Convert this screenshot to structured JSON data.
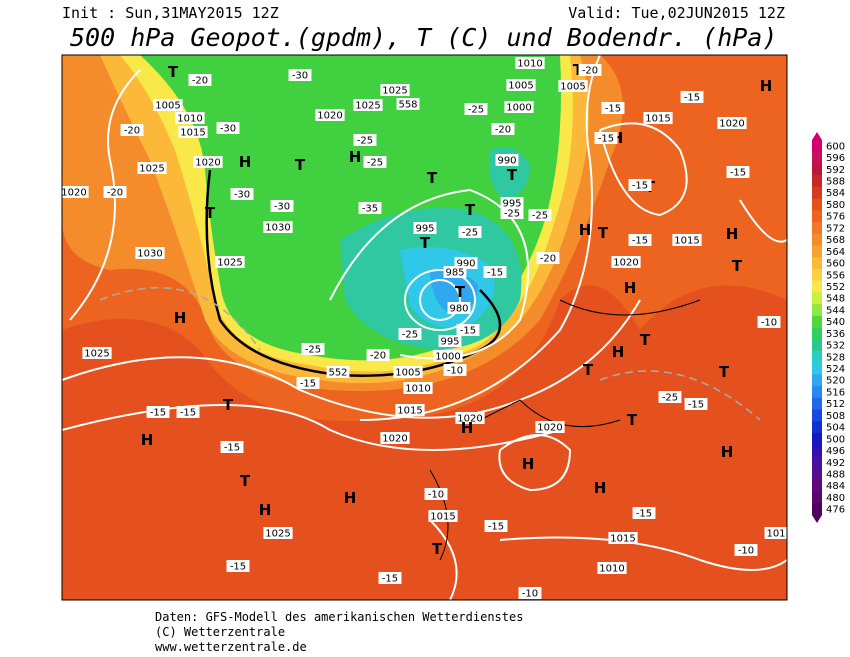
{
  "header": {
    "init": "Init : Sun,31MAY2015 12Z",
    "valid": "Valid: Tue,02JUN2015 12Z",
    "title": "500 hPa Geopot.(gpdm), T (C) und Bodendr. (hPa)"
  },
  "legend": {
    "labels": [
      "600",
      "596",
      "592",
      "588",
      "584",
      "580",
      "576",
      "572",
      "568",
      "564",
      "560",
      "556",
      "552",
      "548",
      "544",
      "540",
      "536",
      "532",
      "528",
      "524",
      "520",
      "516",
      "512",
      "508",
      "504",
      "500",
      "496",
      "492",
      "488",
      "484",
      "480",
      "476"
    ],
    "colors": [
      "#d4006e",
      "#c8105a",
      "#b8183c",
      "#c82828",
      "#d83c1e",
      "#e4501e",
      "#ec6420",
      "#f07828",
      "#f48c2c",
      "#f8a030",
      "#fcb838",
      "#fcd040",
      "#f8e848",
      "#c8f040",
      "#90e840",
      "#50d838",
      "#30d060",
      "#28c890",
      "#28d0c0",
      "#30c8e8",
      "#30a8f0",
      "#2888f0",
      "#2068e8",
      "#1848e0",
      "#1030d0",
      "#1818c0",
      "#3010b0",
      "#4810a0",
      "#580c90",
      "#600880",
      "#580870",
      "#500060"
    ]
  },
  "map_labels": [
    "T",
    "-20",
    "1005",
    "1010",
    "1015",
    "-20",
    "-30",
    "1020",
    "H",
    "1025",
    "-20",
    "1020",
    "-30",
    "T",
    "1030",
    "1030",
    "1025",
    "H",
    "1025",
    "-30",
    "1025",
    "558",
    "1025",
    "1020",
    "-25",
    "H",
    "-25",
    "T",
    "-35",
    "-30",
    "T",
    "T",
    "-25",
    "995",
    "T",
    "990",
    "985",
    "T",
    "980",
    "-15",
    "-15",
    "995",
    "1000",
    "-25",
    "-25",
    "-20",
    "552",
    "-15",
    "1005",
    "-10",
    "1010",
    "1015",
    "1020",
    "1020",
    "H",
    "T",
    "-15",
    "-15",
    "H",
    "-15",
    "T",
    "H",
    "H",
    "1025",
    "-15",
    "-15",
    "1010",
    "-10",
    "1015",
    "-10",
    "-15",
    "T",
    "H",
    "1020",
    "H",
    "-15",
    "1015",
    "-10",
    "101",
    "H",
    "T",
    "-15",
    "-25",
    "T",
    "H",
    "T",
    "T",
    "H",
    "1020",
    "-15",
    "H",
    "T",
    "1015",
    "H",
    "T",
    "-10",
    "T",
    "-15",
    "-15",
    "H",
    "-15",
    "-15",
    "1015",
    "-15",
    "1020",
    "H",
    "T",
    "-20",
    "1005",
    "1010",
    "1005",
    "1000",
    "-25",
    "-20",
    "990",
    "T",
    "995",
    "-25",
    "-25",
    "-20"
  ],
  "footer": [
    "Daten: GFS-Modell des amerikanischen Wetterdienstes",
    "(C) Wetterzentrale",
    "www.wetterzentrale.de"
  ]
}
